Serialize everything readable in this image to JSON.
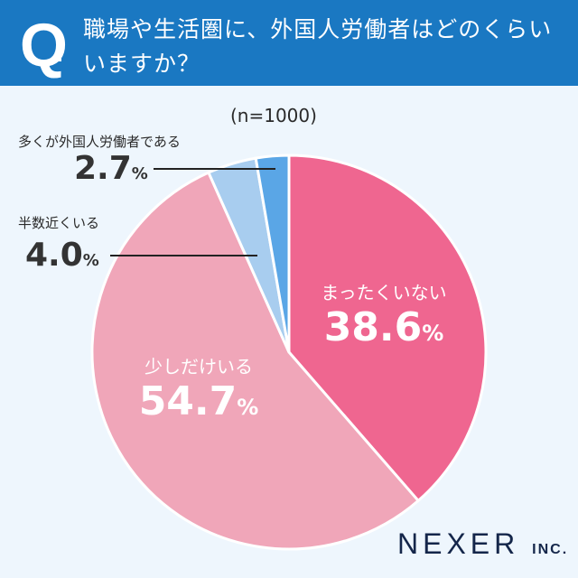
{
  "header": {
    "q": "Q.",
    "title": "職場や生活圏に、外国人労働者はどのくらいいますか？"
  },
  "chart_data": {
    "type": "pie",
    "title": "職場や生活圏に、外国人労働者はどのくらいいますか？",
    "sample": "(n=1000)",
    "unit": "%",
    "slices": [
      {
        "label": "まったくいない",
        "value": 38.6,
        "display": "38.6",
        "color": "#ef6690"
      },
      {
        "label": "少しだけいる",
        "value": 54.7,
        "display": "54.7",
        "color": "#f0a6b9"
      },
      {
        "label": "半数近くいる",
        "value": 4.0,
        "display": "4.0",
        "color": "#a8cdef"
      },
      {
        "label": "多くが外国人労働者である",
        "value": 2.7,
        "display": "2.7",
        "color": "#5aa6e6"
      }
    ]
  },
  "logo": {
    "name": "NEXER",
    "suffix": "INC."
  }
}
